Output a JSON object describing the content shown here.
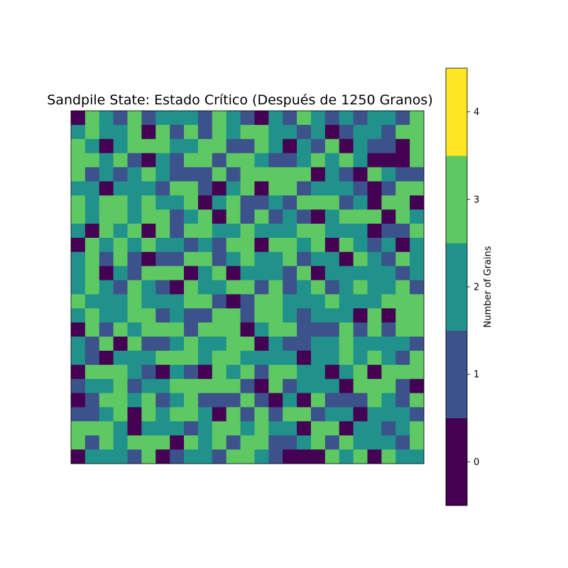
{
  "chart_data": {
    "type": "heatmap",
    "title": "Sandpile State: Estado Crítico (Después de 1250 Granos)",
    "rows": 25,
    "cols": 25,
    "xaxis_visible": false,
    "yaxis_visible": false,
    "colorbar": {
      "label": "Number of Grains",
      "ticks": [
        "0",
        "1",
        "2",
        "3",
        "4"
      ],
      "range": [
        -0.5,
        4.5
      ],
      "levels": [
        0,
        1,
        2,
        3,
        4
      ],
      "colors": {
        "0": "#440154",
        "1": "#3b528b",
        "2": "#21918c",
        "3": "#5ec962",
        "4": "#fde725"
      }
    },
    "grid": [
      [
        0,
        3,
        2,
        1,
        3,
        1,
        2,
        2,
        2,
        1,
        3,
        2,
        1,
        0,
        2,
        1,
        3,
        2,
        1,
        2,
        1,
        2,
        2,
        1,
        3
      ],
      [
        2,
        3,
        2,
        2,
        3,
        0,
        3,
        1,
        3,
        1,
        3,
        2,
        3,
        3,
        2,
        2,
        1,
        2,
        0,
        1,
        2,
        2,
        1,
        3,
        3
      ],
      [
        3,
        2,
        0,
        2,
        3,
        3,
        3,
        2,
        2,
        3,
        3,
        1,
        1,
        3,
        2,
        0,
        2,
        1,
        3,
        0,
        2,
        1,
        1,
        0,
        3
      ],
      [
        3,
        3,
        2,
        3,
        1,
        0,
        2,
        1,
        3,
        3,
        1,
        3,
        3,
        2,
        1,
        1,
        2,
        3,
        2,
        3,
        2,
        0,
        0,
        0,
        3
      ],
      [
        3,
        1,
        2,
        1,
        2,
        3,
        2,
        1,
        1,
        1,
        3,
        1,
        3,
        3,
        3,
        3,
        3,
        0,
        2,
        1,
        0,
        3,
        2,
        1,
        1
      ],
      [
        2,
        2,
        0,
        2,
        2,
        2,
        1,
        3,
        3,
        1,
        0,
        2,
        3,
        0,
        3,
        3,
        1,
        2,
        2,
        2,
        1,
        0,
        1,
        3,
        3
      ],
      [
        3,
        2,
        3,
        3,
        2,
        3,
        2,
        2,
        3,
        0,
        2,
        3,
        1,
        1,
        2,
        1,
        3,
        3,
        3,
        1,
        2,
        0,
        3,
        3,
        0
      ],
      [
        3,
        2,
        3,
        3,
        2,
        3,
        3,
        1,
        2,
        3,
        0,
        3,
        1,
        3,
        1,
        2,
        1,
        0,
        2,
        3,
        3,
        3,
        0,
        3,
        2
      ],
      [
        2,
        0,
        3,
        2,
        3,
        0,
        3,
        1,
        3,
        3,
        2,
        2,
        3,
        2,
        2,
        2,
        3,
        3,
        2,
        2,
        2,
        0,
        1,
        1,
        3
      ],
      [
        0,
        3,
        2,
        3,
        2,
        3,
        2,
        2,
        1,
        2,
        1,
        3,
        3,
        0,
        3,
        3,
        2,
        3,
        0,
        3,
        2,
        1,
        2,
        0,
        2
      ],
      [
        2,
        3,
        1,
        3,
        1,
        0,
        1,
        1,
        3,
        3,
        1,
        2,
        3,
        2,
        2,
        3,
        1,
        2,
        2,
        0,
        3,
        2,
        1,
        3,
        2
      ],
      [
        2,
        3,
        0,
        2,
        1,
        3,
        3,
        3,
        0,
        2,
        3,
        0,
        2,
        2,
        2,
        1,
        3,
        0,
        2,
        2,
        2,
        2,
        2,
        1,
        2
      ],
      [
        2,
        3,
        2,
        1,
        3,
        2,
        1,
        0,
        3,
        2,
        2,
        3,
        3,
        1,
        3,
        1,
        2,
        3,
        1,
        2,
        3,
        2,
        2,
        3,
        1
      ],
      [
        3,
        2,
        2,
        2,
        3,
        2,
        2,
        2,
        3,
        3,
        1,
        0,
        1,
        3,
        3,
        2,
        2,
        2,
        3,
        2,
        2,
        2,
        3,
        3,
        3
      ],
      [
        2,
        3,
        2,
        2,
        3,
        3,
        1,
        2,
        1,
        1,
        3,
        3,
        1,
        3,
        3,
        2,
        1,
        2,
        2,
        2,
        0,
        3,
        0,
        3,
        3
      ],
      [
        0,
        3,
        1,
        3,
        2,
        3,
        3,
        3,
        1,
        3,
        3,
        3,
        0,
        2,
        3,
        3,
        1,
        1,
        1,
        3,
        1,
        3,
        1,
        3,
        3
      ],
      [
        2,
        1,
        3,
        0,
        3,
        1,
        1,
        2,
        3,
        2,
        2,
        3,
        3,
        0,
        2,
        1,
        1,
        2,
        2,
        3,
        2,
        2,
        2,
        2,
        1
      ],
      [
        2,
        1,
        0,
        2,
        2,
        2,
        3,
        3,
        3,
        2,
        3,
        3,
        2,
        2,
        2,
        2,
        0,
        2,
        2,
        3,
        2,
        3,
        2,
        1,
        3
      ],
      [
        0,
        3,
        3,
        3,
        2,
        1,
        0,
        2,
        1,
        0,
        3,
        2,
        3,
        1,
        3,
        3,
        2,
        2,
        0,
        2,
        3,
        0,
        3,
        3,
        3
      ],
      [
        1,
        2,
        2,
        3,
        1,
        2,
        2,
        3,
        3,
        3,
        3,
        3,
        1,
        0,
        3,
        1,
        2,
        2,
        2,
        0,
        3,
        3,
        3,
        1,
        0
      ],
      [
        0,
        1,
        3,
        3,
        2,
        3,
        1,
        2,
        3,
        1,
        1,
        1,
        3,
        1,
        0,
        2,
        0,
        3,
        1,
        1,
        1,
        3,
        2,
        1,
        3
      ],
      [
        1,
        1,
        2,
        3,
        0,
        3,
        2,
        3,
        3,
        2,
        0,
        3,
        1,
        3,
        1,
        3,
        3,
        1,
        2,
        2,
        0,
        2,
        2,
        2,
        1
      ],
      [
        3,
        3,
        3,
        2,
        0,
        2,
        2,
        2,
        1,
        2,
        3,
        3,
        2,
        3,
        2,
        2,
        0,
        3,
        3,
        0,
        2,
        2,
        1,
        2,
        3
      ],
      [
        3,
        1,
        3,
        2,
        3,
        3,
        3,
        0,
        3,
        2,
        3,
        1,
        3,
        3,
        1,
        1,
        2,
        3,
        1,
        3,
        2,
        2,
        2,
        1,
        3
      ],
      [
        0,
        2,
        2,
        2,
        1,
        3,
        0,
        1,
        2,
        2,
        1,
        3,
        3,
        2,
        1,
        0,
        0,
        0,
        3,
        2,
        3,
        0,
        3,
        2,
        2
      ]
    ]
  }
}
